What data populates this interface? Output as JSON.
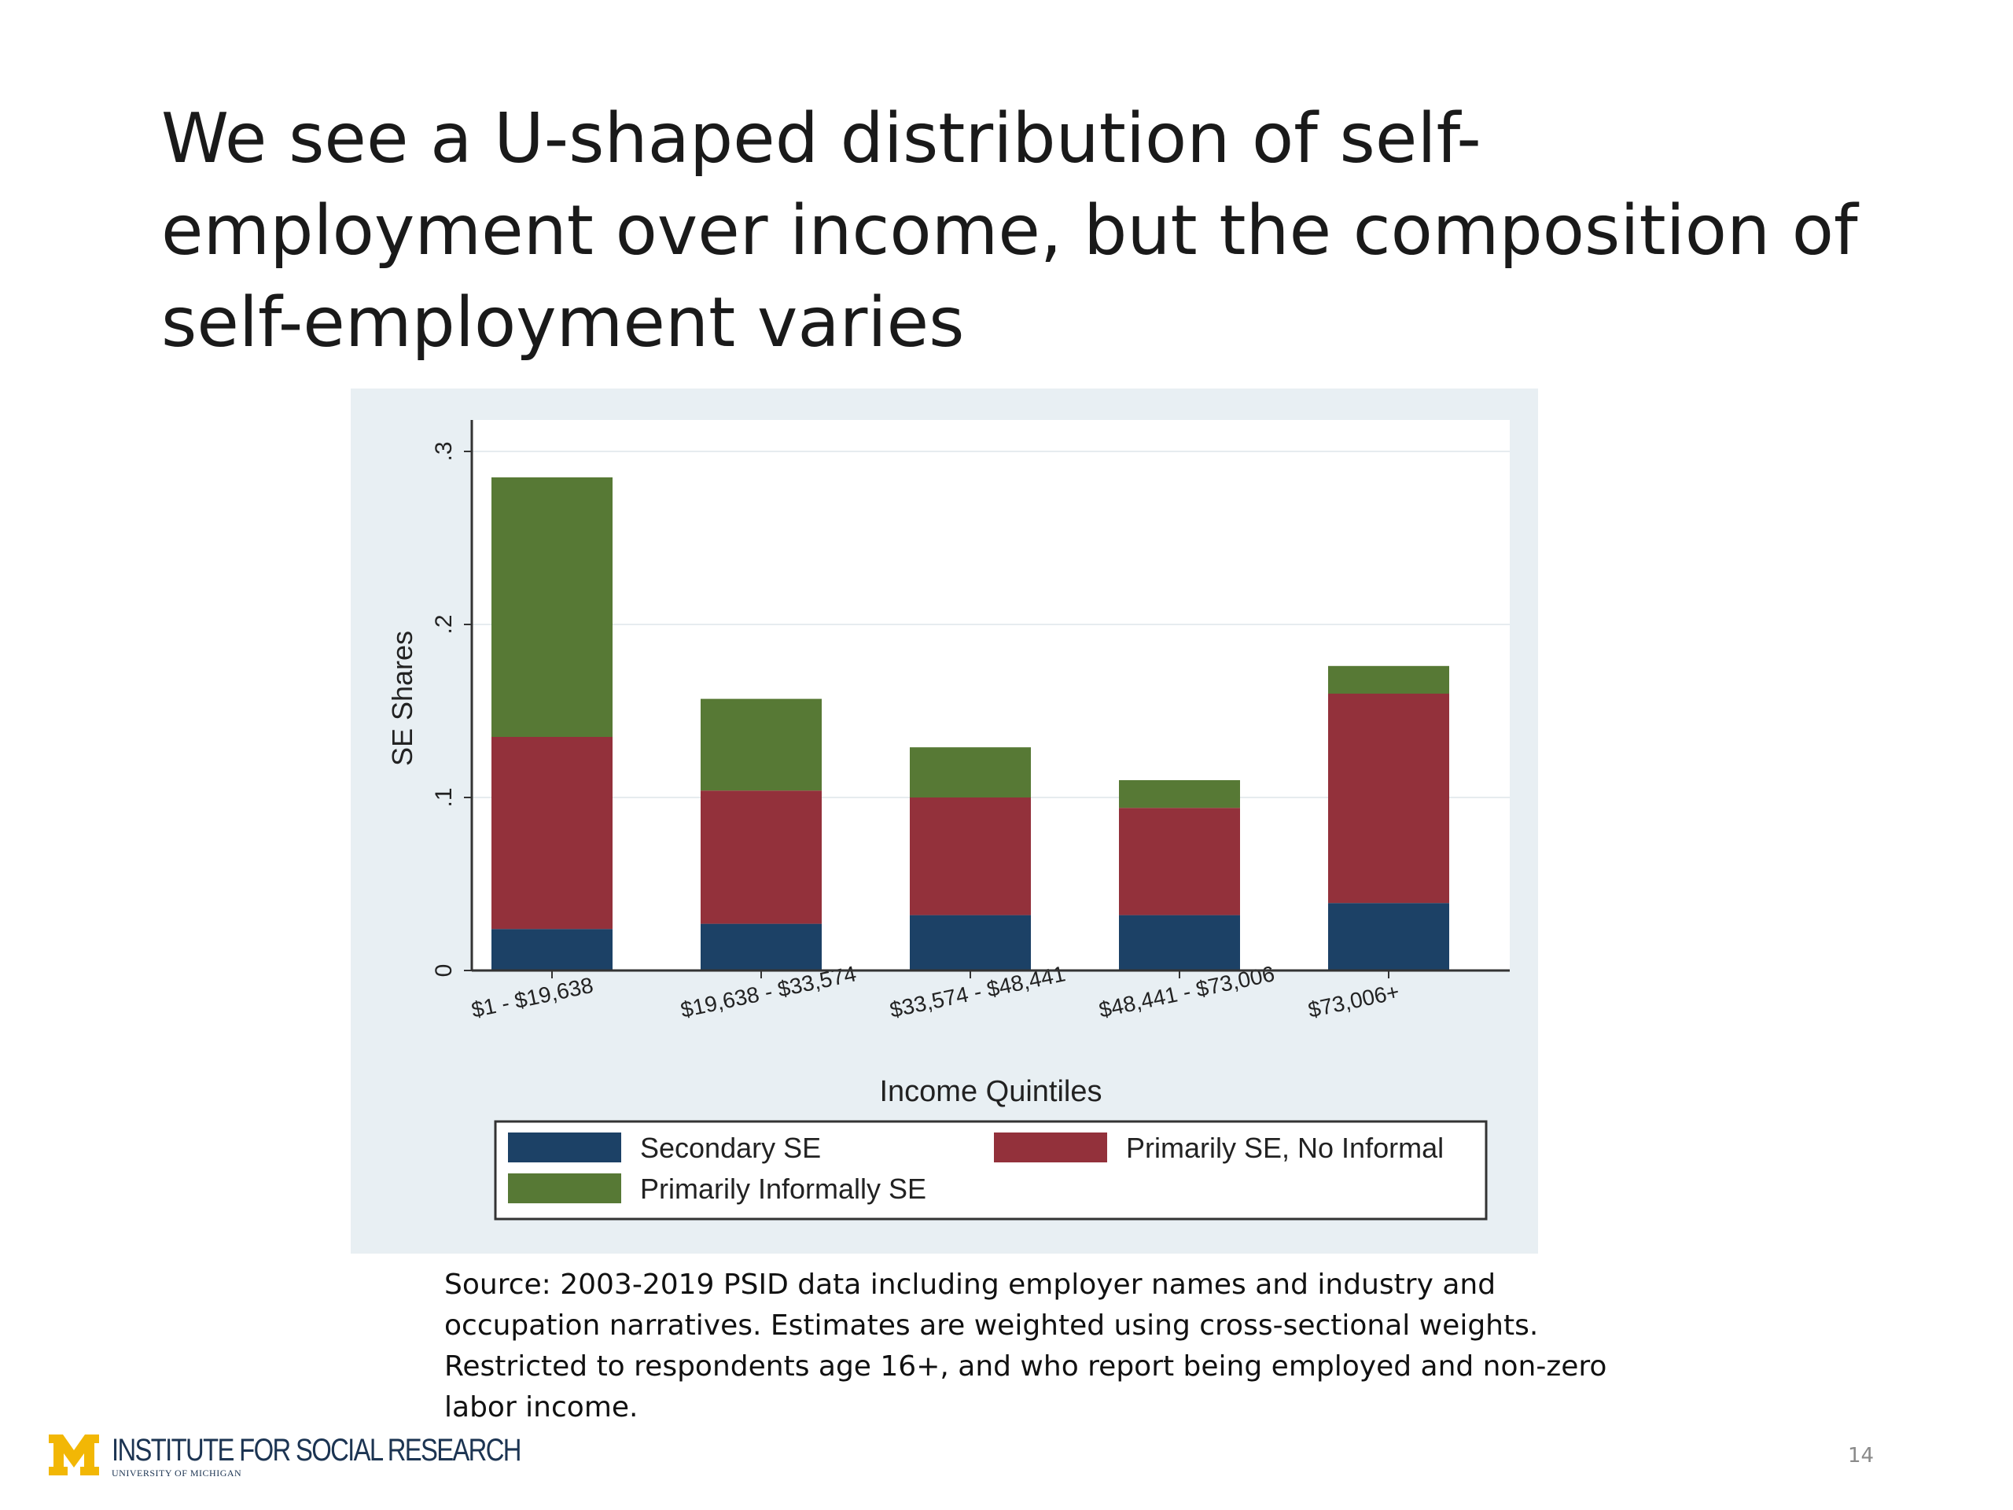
{
  "slide": {
    "title_lines": [
      "We see a U-shaped distribution of self-",
      "employment over income, but the composition of",
      "self-employment varies"
    ],
    "source_lines": [
      "Source: 2003-2019 PSID data including employer names and industry and",
      "occupation narratives. Estimates are weighted using cross-sectional weights.",
      "Restricted to respondents age 16+, and who report being employed and non-zero",
      "labor income."
    ],
    "footer": {
      "logo_text": "INSTITUTE FOR SOCIAL RESEARCH",
      "logo_subtext": "UNIVERSITY OF MICHIGAN",
      "page_number": "14"
    }
  },
  "chart_data": {
    "type": "bar",
    "stacked": true,
    "categories": [
      "$1 - $19,638",
      "$19,638 - $33,574",
      "$33,574 - $48,441",
      "$48,441 - $73,006",
      "$73,006+"
    ],
    "series": [
      {
        "name": "Secondary SE",
        "color": "#1c4166",
        "values": [
          0.024,
          0.027,
          0.032,
          0.032,
          0.039
        ]
      },
      {
        "name": "Primarily SE, No Informal",
        "color": "#93313b",
        "values": [
          0.111,
          0.077,
          0.068,
          0.062,
          0.121
        ]
      },
      {
        "name": "Primarily Informally SE",
        "color": "#577935",
        "values": [
          0.15,
          0.053,
          0.029,
          0.016,
          0.016
        ]
      }
    ],
    "xlabel": "Income Quintiles",
    "ylabel": "SE Shares",
    "ylim": [
      0,
      0.3
    ],
    "yticks": [
      {
        "value": 0,
        "label": "0"
      },
      {
        "value": 0.1,
        "label": ".1"
      },
      {
        "value": 0.2,
        "label": ".2"
      },
      {
        "value": 0.3,
        "label": ".3"
      }
    ],
    "grid": true,
    "legend_position": "bottom",
    "colors": {
      "panel_background": "#e8eff3",
      "plot_background": "#ffffff",
      "grid": "#e6ecef",
      "axis": "#333333"
    }
  }
}
